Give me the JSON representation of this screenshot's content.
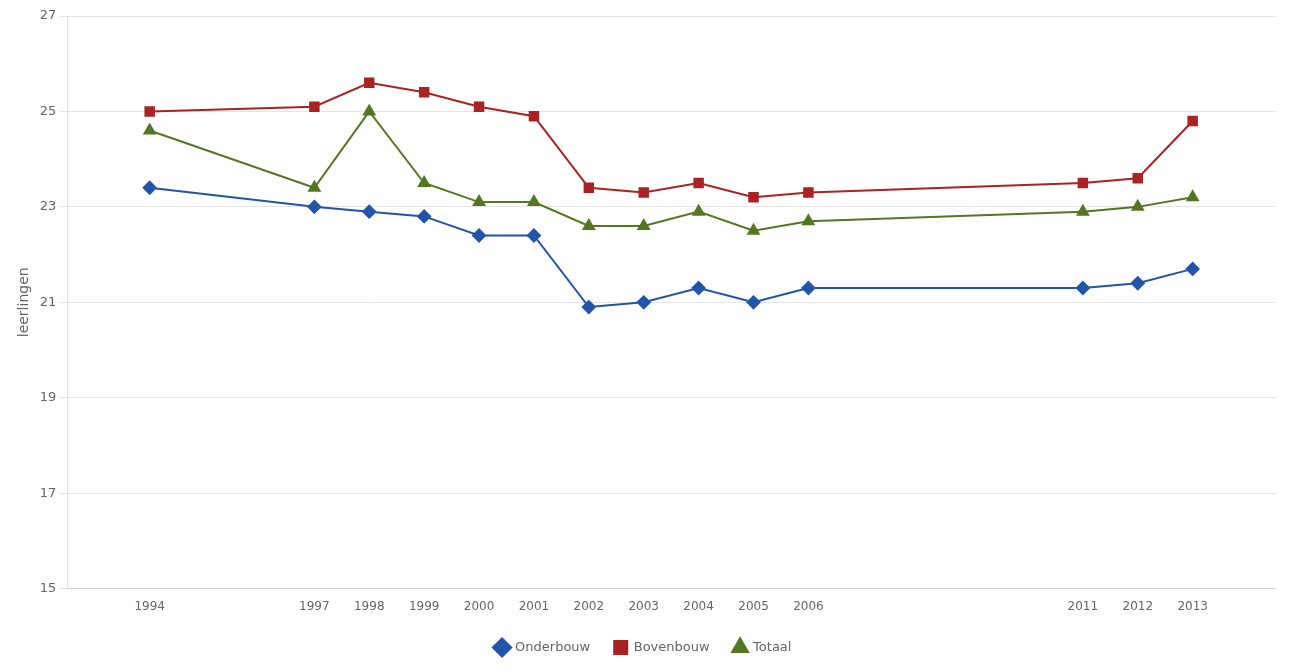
{
  "chart_data": {
    "type": "line",
    "ylabel": "leerlingen",
    "x": [
      1994,
      1997,
      1998,
      1999,
      2000,
      2001,
      2002,
      2003,
      2004,
      2005,
      2006,
      2011,
      2012,
      2013
    ],
    "series": [
      {
        "name": "Onderbouw",
        "color": "#2255aa",
        "marker": "diamond",
        "values": [
          23.4,
          23.0,
          22.9,
          22.8,
          22.4,
          22.4,
          20.9,
          21.0,
          21.3,
          21.0,
          21.3,
          21.3,
          21.4,
          21.7
        ]
      },
      {
        "name": "Bovenbouw",
        "color": "#aa2222",
        "marker": "square",
        "values": [
          25.0,
          25.1,
          25.6,
          25.4,
          25.1,
          24.9,
          23.4,
          23.3,
          23.5,
          23.2,
          23.3,
          23.5,
          23.6,
          24.8
        ]
      },
      {
        "name": "Totaal",
        "color": "#557722",
        "marker": "triangle",
        "values": [
          24.6,
          23.4,
          25.0,
          23.5,
          23.1,
          23.1,
          22.6,
          22.6,
          22.9,
          22.5,
          22.7,
          22.9,
          23.0,
          23.2
        ]
      }
    ],
    "xlim": [
      1992.5,
      2014.5
    ],
    "xticks": [
      1994,
      1997,
      1998,
      1999,
      2000,
      2001,
      2002,
      2003,
      2004,
      2005,
      2006,
      2011,
      2012,
      2013
    ],
    "ylim": [
      15,
      27
    ],
    "yticks": [
      15,
      17,
      19,
      21,
      23,
      25,
      27
    ],
    "grid": "y",
    "legend": "bottom"
  }
}
